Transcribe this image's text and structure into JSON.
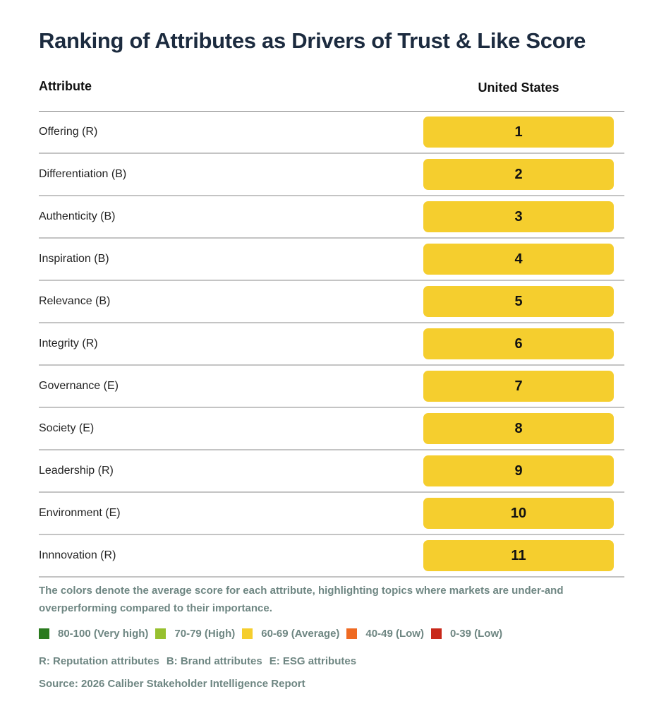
{
  "chart_data": {
    "type": "table",
    "title": "Ranking of Attributes as Drivers of Trust & Like Score",
    "columns": [
      "Attribute",
      "United States"
    ],
    "rows": [
      {
        "attribute": "Offering (R)",
        "rank": 1,
        "category": "60-69 (Average)",
        "color": "#f5ce2e"
      },
      {
        "attribute": "Differentiation (B)",
        "rank": 2,
        "category": "60-69 (Average)",
        "color": "#f5ce2e"
      },
      {
        "attribute": "Authenticity (B)",
        "rank": 3,
        "category": "60-69 (Average)",
        "color": "#f5ce2e"
      },
      {
        "attribute": "Inspiration (B)",
        "rank": 4,
        "category": "60-69 (Average)",
        "color": "#f5ce2e"
      },
      {
        "attribute": "Relevance (B)",
        "rank": 5,
        "category": "60-69 (Average)",
        "color": "#f5ce2e"
      },
      {
        "attribute": "Integrity (R)",
        "rank": 6,
        "category": "60-69 (Average)",
        "color": "#f5ce2e"
      },
      {
        "attribute": "Governance (E)",
        "rank": 7,
        "category": "60-69 (Average)",
        "color": "#f5ce2e"
      },
      {
        "attribute": "Society (E)",
        "rank": 8,
        "category": "60-69 (Average)",
        "color": "#f5ce2e"
      },
      {
        "attribute": "Leadership (R)",
        "rank": 9,
        "category": "60-69 (Average)",
        "color": "#f5ce2e"
      },
      {
        "attribute": "Environment (E)",
        "rank": 10,
        "category": "60-69 (Average)",
        "color": "#f5ce2e"
      },
      {
        "attribute": "Innnovation (R)",
        "rank": 11,
        "category": "60-69 (Average)",
        "color": "#f5ce2e"
      }
    ],
    "legend": [
      {
        "label": "80-100 (Very high)",
        "color": "#2a7a1e"
      },
      {
        "label": "70-79 (High)",
        "color": "#97c02f"
      },
      {
        "label": "60-69 (Average)",
        "color": "#f5ce2e"
      },
      {
        "label": "40-49 (Low)",
        "color": "#ef6a22"
      },
      {
        "label": "0-39 (Low)",
        "color": "#c8281a"
      }
    ]
  },
  "header": {
    "title": "Ranking of Attributes as Drivers of Trust & Like Score",
    "col_attribute": "Attribute",
    "col_market": "United States"
  },
  "footer": {
    "note": "The colors denote the average score for each attribute, highlighting topics where markets are under-and overperforming compared to their importance.",
    "abbreviations": [
      "R: Reputation attributes",
      "B: Brand attributes",
      "E: ESG attributes"
    ],
    "source": "Source: 2026 Caliber Stakeholder Intelligence Report"
  }
}
